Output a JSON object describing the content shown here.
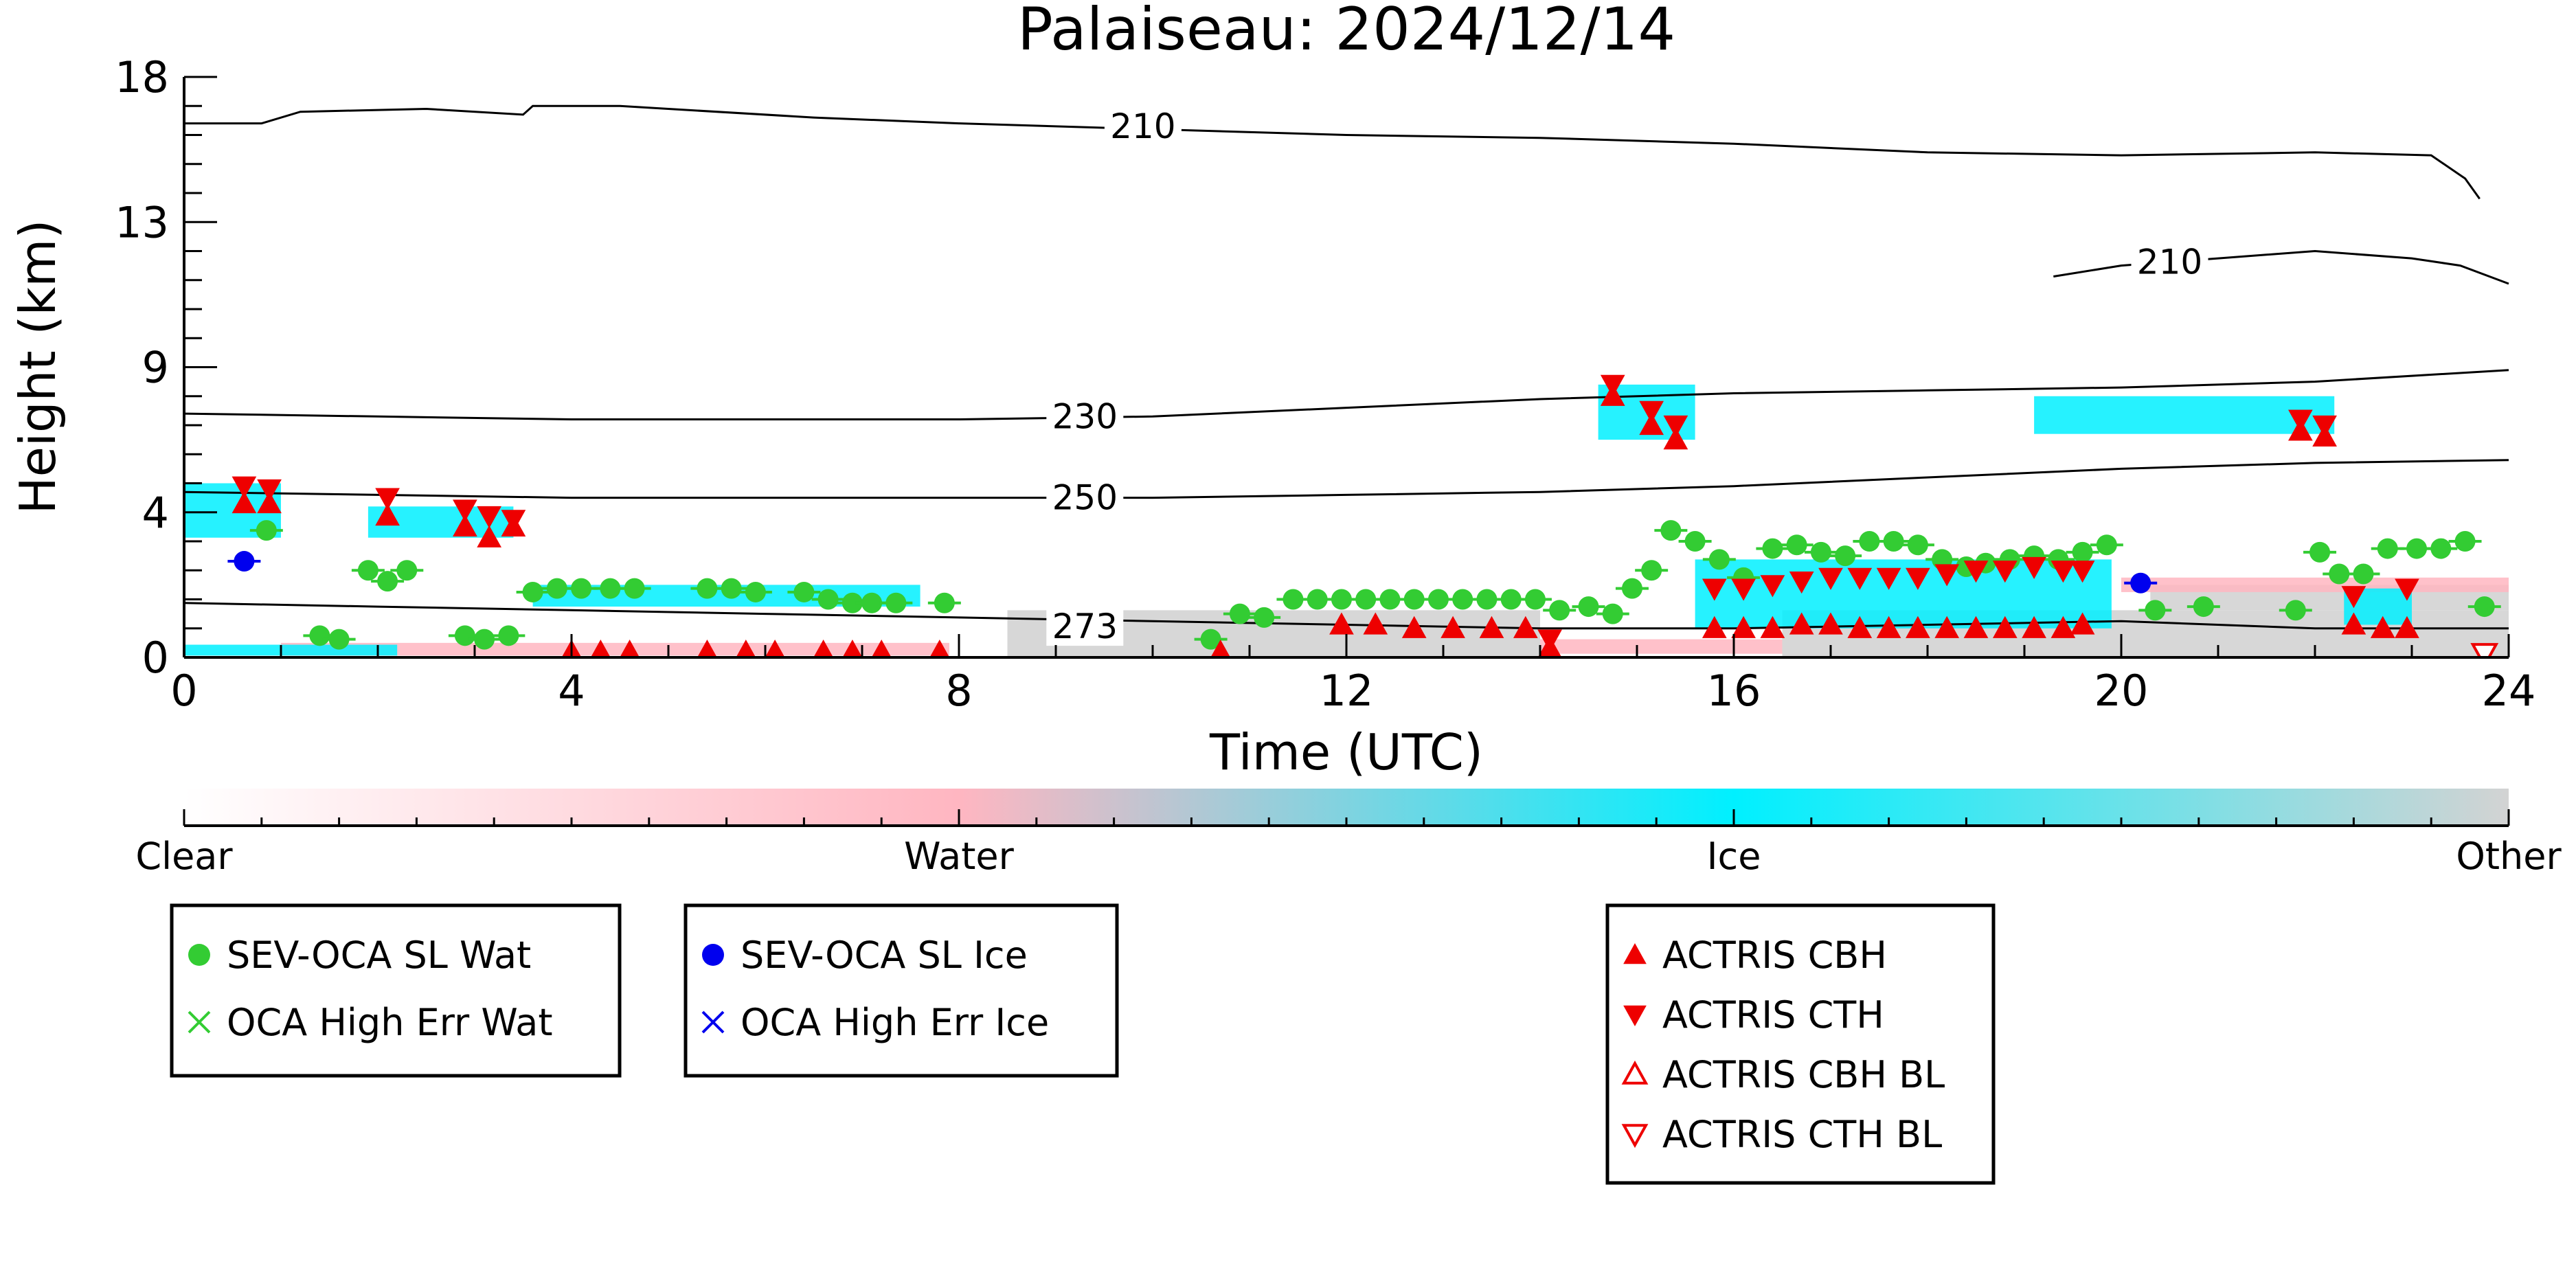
{
  "chart_data": {
    "type": "scatter",
    "title": "Palaiseau: 2024/12/14",
    "xlabel": "Time (UTC)",
    "ylabel": "Height (km)",
    "xlim": [
      0,
      24
    ],
    "ylim": [
      0,
      18
    ],
    "x_ticks": [
      0,
      4,
      8,
      12,
      16,
      20,
      24
    ],
    "x_tick_labels": [
      "0",
      "4",
      "8",
      "12",
      "16",
      "20",
      "24"
    ],
    "y_ticks": [
      0,
      4,
      9,
      13,
      18
    ],
    "y_tick_labels": [
      "0",
      "4",
      "9",
      "13",
      "18"
    ],
    "y_scale": "nonlinear",
    "grid": false,
    "colorbar": {
      "orientation": "horizontal",
      "labels": [
        "Clear",
        "Water",
        "Ice",
        "Other"
      ],
      "colors": [
        "#ffffff",
        "#ffb6c1",
        "#00f0ff",
        "#d3d3d3"
      ]
    },
    "colors": {
      "sevoca_water": "#33cc33",
      "sevoca_ice": "#0000ee",
      "actris": "#ee0000",
      "water_shading": "#ffb6c1",
      "ice_shading": "#00f0ff",
      "other_shading": "#d3d3d3"
    },
    "temperature_contours": [
      {
        "label": "210",
        "label_x": 9.9,
        "label_y": 16.3,
        "x": [
          0,
          0.8,
          1.2,
          2.5,
          3.5,
          3.6,
          4.5,
          5.0,
          6.5,
          8.0,
          10.0,
          12.0,
          14.0,
          16.0,
          18.0,
          20.0,
          22.0,
          23.2,
          23.55,
          23.7
        ],
        "y": [
          16.4,
          16.4,
          16.8,
          16.9,
          16.7,
          17.0,
          17.0,
          16.9,
          16.6,
          16.4,
          16.2,
          16.0,
          15.9,
          15.7,
          15.4,
          15.3,
          15.4,
          15.3,
          14.5,
          13.8
        ]
      },
      {
        "label": "210",
        "label_x": 20.5,
        "label_y": 11.9,
        "x": [
          19.3,
          20.0,
          21.0,
          22.0,
          23.0,
          23.5,
          24.0
        ],
        "y": [
          11.5,
          11.8,
          12.0,
          12.2,
          12.0,
          11.8,
          11.3
        ]
      },
      {
        "label": "230",
        "label_x": 9.3,
        "label_y": 7.3,
        "x": [
          0,
          2,
          4,
          6,
          8,
          10,
          12,
          14,
          16,
          18,
          20,
          22,
          24
        ],
        "y": [
          7.4,
          7.3,
          7.2,
          7.2,
          7.2,
          7.3,
          7.6,
          7.9,
          8.1,
          8.2,
          8.3,
          8.5,
          8.9
        ]
      },
      {
        "label": "250",
        "label_x": 9.3,
        "label_y": 4.5,
        "x": [
          0,
          2,
          4,
          6,
          8,
          10,
          12,
          14,
          16,
          18,
          20,
          22,
          24
        ],
        "y": [
          4.7,
          4.6,
          4.5,
          4.5,
          4.5,
          4.5,
          4.6,
          4.7,
          4.9,
          5.2,
          5.5,
          5.7,
          5.8
        ]
      },
      {
        "label": "273",
        "label_x": 9.3,
        "label_y": 0.85,
        "x": [
          0,
          2,
          4,
          6,
          8,
          10,
          12,
          14,
          16,
          18,
          20,
          22,
          24
        ],
        "y": [
          1.5,
          1.4,
          1.3,
          1.2,
          1.1,
          1.0,
          0.9,
          0.8,
          0.8,
          0.9,
          1.0,
          0.8,
          0.8
        ]
      }
    ],
    "series": [
      {
        "name": "SEV-OCA SL Wat",
        "marker": "circle",
        "color": "#33cc33",
        "x": [
          0.85,
          1.4,
          1.6,
          1.9,
          2.1,
          2.3,
          2.9,
          3.1,
          3.35,
          3.6,
          3.85,
          4.1,
          4.4,
          4.65,
          5.4,
          5.65,
          5.9,
          6.4,
          6.65,
          6.9,
          7.1,
          7.35,
          7.85,
          10.6,
          10.9,
          11.15,
          11.45,
          11.7,
          11.95,
          12.2,
          12.45,
          12.7,
          12.95,
          13.2,
          13.45,
          13.7,
          13.95,
          14.2,
          14.5,
          14.75,
          14.95,
          15.15,
          15.35,
          15.6,
          15.85,
          16.1,
          16.4,
          16.65,
          16.9,
          17.15,
          17.4,
          17.65,
          17.9,
          18.15,
          18.4,
          18.6,
          18.85,
          19.1,
          19.35,
          19.6,
          19.85,
          20.35,
          20.85,
          21.8,
          22.05,
          22.25,
          22.5,
          22.75,
          23.05,
          23.3,
          23.55,
          23.75
        ],
        "y": [
          3.5,
          0.6,
          0.5,
          2.4,
          2.1,
          2.4,
          0.6,
          0.5,
          0.6,
          1.8,
          1.9,
          1.9,
          1.9,
          1.9,
          1.9,
          1.9,
          1.8,
          1.8,
          1.6,
          1.5,
          1.5,
          1.5,
          1.5,
          0.5,
          1.2,
          1.1,
          1.6,
          1.6,
          1.6,
          1.6,
          1.6,
          1.6,
          1.6,
          1.6,
          1.6,
          1.6,
          1.6,
          1.3,
          1.4,
          1.2,
          1.9,
          2.4,
          3.5,
          3.2,
          2.7,
          2.2,
          3.0,
          3.1,
          2.9,
          2.8,
          3.2,
          3.2,
          3.1,
          2.7,
          2.5,
          2.6,
          2.7,
          2.8,
          2.7,
          2.9,
          3.1,
          1.3,
          1.4,
          1.3,
          2.9,
          2.3,
          2.3,
          3.0,
          3.0,
          3.0,
          3.2,
          1.4
        ],
        "error_bars": true
      },
      {
        "name": "SEV-OCA SL Ice",
        "marker": "circle",
        "color": "#0000ee",
        "x": [
          0.62,
          20.2
        ],
        "y": [
          2.65,
          2.05
        ],
        "error_bars": true
      },
      {
        "name": "OCA High Err Wat",
        "marker": "x",
        "color": "#33cc33",
        "x": [],
        "y": []
      },
      {
        "name": "OCA High Err Ice",
        "marker": "x",
        "color": "#0000ee",
        "x": [],
        "y": []
      },
      {
        "name": "ACTRIS CBH",
        "marker": "triangle-up",
        "color": "#ee0000",
        "x": [
          0.62,
          0.88,
          2.1,
          2.9,
          3.15,
          3.4,
          14.1,
          14.75,
          15.15,
          15.4,
          21.85,
          22.1,
          4.0,
          4.3,
          4.6,
          5.4,
          5.8,
          6.1,
          6.6,
          6.9,
          7.2,
          7.8,
          10.7,
          11.95,
          12.3,
          12.7,
          13.1,
          13.5,
          13.85,
          15.8,
          16.1,
          16.4,
          16.7,
          17.0,
          17.3,
          17.6,
          17.9,
          18.2,
          18.5,
          18.8,
          19.1,
          19.4,
          19.6,
          22.4,
          22.7,
          22.95
        ],
        "y": [
          4.3,
          4.3,
          3.9,
          3.6,
          3.3,
          3.6,
          0.25,
          8.0,
          7.0,
          6.5,
          6.8,
          6.6,
          0.15,
          0.15,
          0.15,
          0.15,
          0.15,
          0.15,
          0.15,
          0.15,
          0.15,
          0.15,
          0.15,
          0.9,
          0.9,
          0.8,
          0.8,
          0.8,
          0.8,
          0.8,
          0.8,
          0.8,
          0.9,
          0.9,
          0.8,
          0.8,
          0.8,
          0.8,
          0.8,
          0.8,
          0.8,
          0.8,
          0.9,
          0.9,
          0.8,
          0.8
        ]
      },
      {
        "name": "ACTRIS CTH",
        "marker": "triangle-down",
        "color": "#ee0000",
        "x": [
          0.62,
          0.88,
          2.1,
          2.9,
          3.15,
          3.4,
          14.1,
          14.75,
          15.15,
          15.4,
          21.85,
          22.1,
          15.8,
          16.1,
          16.4,
          16.7,
          17.0,
          17.3,
          17.6,
          17.9,
          18.2,
          18.5,
          18.8,
          19.1,
          19.4,
          19.6,
          22.4,
          22.95
        ],
        "y": [
          4.9,
          4.8,
          4.5,
          4.1,
          3.9,
          3.8,
          0.5,
          8.4,
          7.5,
          7.0,
          7.2,
          7.0,
          1.9,
          1.9,
          2.0,
          2.1,
          2.2,
          2.2,
          2.2,
          2.2,
          2.3,
          2.4,
          2.4,
          2.5,
          2.4,
          2.4,
          1.7,
          1.9
        ]
      },
      {
        "name": "ACTRIS CBH BL",
        "marker": "triangle-up-open",
        "color": "#ee0000",
        "x": [],
        "y": []
      },
      {
        "name": "ACTRIS CTH BL",
        "marker": "triangle-down-open",
        "color": "#ee0000",
        "x": [
          23.75
        ],
        "y": [
          0.1
        ]
      }
    ],
    "cloud_regions": [
      {
        "phase": "Ice",
        "x0": 0.0,
        "x1": 1.0,
        "y0": 3.3,
        "y1": 5.0
      },
      {
        "phase": "Ice",
        "x0": 1.9,
        "x1": 3.4,
        "y0": 3.3,
        "y1": 4.2
      },
      {
        "phase": "Ice",
        "x0": 3.6,
        "x1": 7.6,
        "y0": 1.4,
        "y1": 2.0
      },
      {
        "phase": "Ice",
        "x0": 0.0,
        "x1": 2.2,
        "y0": 0.05,
        "y1": 0.35
      },
      {
        "phase": "Ice",
        "x0": 14.6,
        "x1": 15.6,
        "y0": 6.5,
        "y1": 8.4
      },
      {
        "phase": "Ice",
        "x0": 19.1,
        "x1": 22.2,
        "y0": 6.7,
        "y1": 8.0
      },
      {
        "phase": "Ice",
        "x0": 15.6,
        "x1": 19.9,
        "y0": 0.8,
        "y1": 2.7
      },
      {
        "phase": "Ice",
        "x0": 22.3,
        "x1": 23.0,
        "y0": 0.9,
        "y1": 1.9
      },
      {
        "phase": "Water",
        "x0": 1.0,
        "x1": 7.9,
        "y0": 0.05,
        "y1": 0.4
      },
      {
        "phase": "Water",
        "x0": 14.0,
        "x1": 16.5,
        "y0": 0.1,
        "y1": 0.5
      },
      {
        "phase": "Water",
        "x0": 20.0,
        "x1": 24.0,
        "y0": 1.8,
        "y1": 2.2
      },
      {
        "phase": "Other",
        "x0": 8.5,
        "x1": 14.0,
        "y0": 0.0,
        "y1": 1.3
      },
      {
        "phase": "Other",
        "x0": 16.5,
        "x1": 24.0,
        "y0": 0.0,
        "y1": 1.3
      },
      {
        "phase": "Other",
        "x0": 20.3,
        "x1": 24.0,
        "y0": 1.3,
        "y1": 2.0
      }
    ],
    "legends": [
      {
        "position": "bottom-left",
        "entries": [
          {
            "label": "SEV-OCA SL Wat",
            "marker": "circle",
            "color": "#33cc33"
          },
          {
            "label": "OCA High Err Wat",
            "marker": "x",
            "color": "#33cc33"
          }
        ]
      },
      {
        "position": "bottom-center-left",
        "entries": [
          {
            "label": "SEV-OCA SL Ice",
            "marker": "circle",
            "color": "#0000ee"
          },
          {
            "label": "OCA High Err Ice",
            "marker": "x",
            "color": "#0000ee"
          }
        ]
      },
      {
        "position": "bottom-center-right",
        "entries": [
          {
            "label": "ACTRIS CBH",
            "marker": "triangle-up",
            "color": "#ee0000"
          },
          {
            "label": "ACTRIS CTH",
            "marker": "triangle-down",
            "color": "#ee0000"
          },
          {
            "label": "ACTRIS CBH BL",
            "marker": "triangle-up-open",
            "color": "#ee0000"
          },
          {
            "label": "ACTRIS CTH BL",
            "marker": "triangle-down-open",
            "color": "#ee0000"
          }
        ]
      }
    ]
  }
}
